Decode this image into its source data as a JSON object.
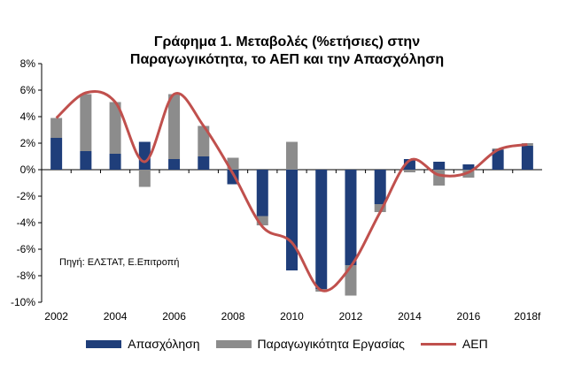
{
  "chart_data": {
    "type": "bar",
    "title_lines": [
      "Γράφημα 1. Μεταβολές (%ετήσιες) στην",
      "Παραγωγικότητα, το ΑΕΠ και την Απασχόληση"
    ],
    "annotation": "Πηγή: ΕΛΣΤΑΤ, Ε.Επιτροπή",
    "categories": [
      "2002",
      "2003",
      "2004",
      "2005",
      "2006",
      "2007",
      "2008",
      "2009",
      "2010",
      "2011",
      "2012",
      "2013",
      "2014",
      "2015",
      "2016",
      "2017",
      "2018f"
    ],
    "x_tick_labels": [
      "2002",
      "",
      "2004",
      "",
      "2006",
      "",
      "2008",
      "",
      "2010",
      "",
      "2012",
      "",
      "2014",
      "",
      "2016",
      "",
      "2018f"
    ],
    "y_ticks": [
      "-10%",
      "-8%",
      "-6%",
      "-4%",
      "-2%",
      "0%",
      "2%",
      "4%",
      "6%",
      "8%"
    ],
    "ylim": [
      -10,
      8
    ],
    "series": [
      {
        "name": "Απασχόληση",
        "kind": "bar",
        "color": "#1F3E7A",
        "values": [
          2.4,
          1.4,
          1.2,
          2.1,
          0.8,
          1.0,
          -1.1,
          -3.5,
          -7.6,
          -9.0,
          -7.2,
          -2.6,
          0.8,
          0.6,
          0.4,
          1.5,
          1.8
        ]
      },
      {
        "name": "Παραγωγικότητα Εργασίας",
        "kind": "bar",
        "color": "#8C8C8C",
        "values": [
          1.5,
          4.3,
          3.9,
          -1.3,
          4.9,
          2.3,
          0.9,
          -0.7,
          2.1,
          -0.2,
          -2.3,
          -0.6,
          -0.2,
          -1.2,
          -0.6,
          0.1,
          0.2
        ]
      },
      {
        "name": "ΑΕΠ",
        "kind": "line",
        "color": "#C0504D",
        "values": [
          3.9,
          5.8,
          5.1,
          0.6,
          5.7,
          3.3,
          -0.3,
          -4.3,
          -5.5,
          -9.1,
          -7.3,
          -3.2,
          0.7,
          -0.4,
          -0.2,
          1.5,
          1.9
        ]
      }
    ],
    "grid": false,
    "legend_position": "bottom"
  }
}
